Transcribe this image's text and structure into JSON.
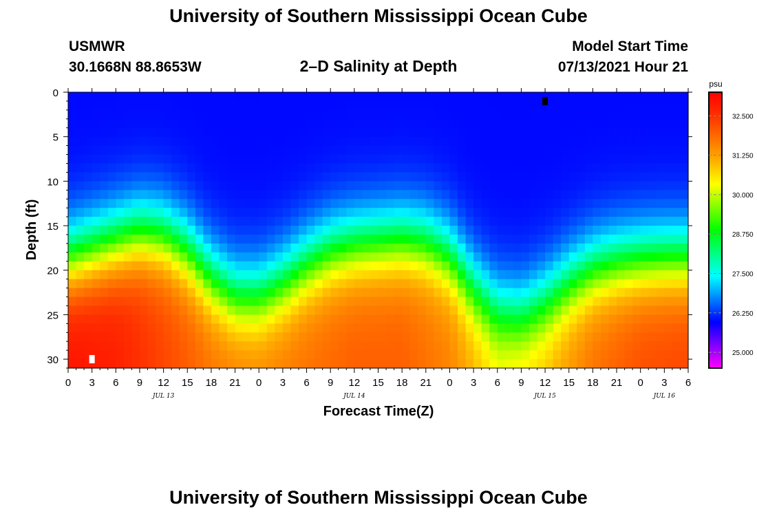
{
  "header": {
    "title": "University of Southern Mississippi Ocean Cube",
    "station": "USMWR",
    "coords": "30.1668N  88.8653W",
    "plot_title": "2–D Salinity at Depth",
    "model_label": "Model Start Time",
    "model_time": "07/13/2021 Hour 21"
  },
  "footer": {
    "title": "University of Southern Mississippi Ocean Cube"
  },
  "chart_data": {
    "type": "heatmap",
    "title": "2–D Salinity at Depth",
    "xlabel": "Forecast Time(Z)",
    "ylabel": "Depth (ft)",
    "x_start_hour": 0,
    "x_end_hour": 78,
    "x_tick_step_hours": 3,
    "x_tick_labels": [
      "0",
      "3",
      "6",
      "9",
      "12",
      "15",
      "18",
      "21",
      "0",
      "3",
      "6",
      "9",
      "12",
      "15",
      "18",
      "21",
      "0",
      "3",
      "6",
      "9",
      "12",
      "15",
      "18",
      "21",
      "0",
      "3",
      "6"
    ],
    "date_labels": [
      {
        "text": "JUL 13",
        "hour": 12
      },
      {
        "text": "JUL 14",
        "hour": 36
      },
      {
        "text": "JUL 15",
        "hour": 60
      },
      {
        "text": "JUL 16",
        "hour": 75
      }
    ],
    "ylim": [
      0,
      31
    ],
    "y_ticks": [
      0,
      5,
      10,
      15,
      20,
      25,
      30
    ],
    "y_reversed": true,
    "colorbar": {
      "unit": "psu",
      "min": 24.5,
      "max": 33.25,
      "tick_values": [
        25.0,
        26.25,
        27.5,
        28.75,
        30.0,
        31.25,
        32.5
      ],
      "tick_labels": [
        "25.000",
        "26.250",
        "27.500",
        "28.750",
        "30.000",
        "31.250",
        "32.500"
      ],
      "colors": [
        "#ff00ff",
        "#8000ff",
        "#0000ff",
        "#0080ff",
        "#00ffff",
        "#00ff80",
        "#00ff00",
        "#80ff00",
        "#ffff00",
        "#ffb000",
        "#ff7000",
        "#ff3000",
        "#ff0000"
      ]
    },
    "halocline_depth_ft": {
      "hours": [
        0,
        3,
        6,
        9,
        12,
        15,
        18,
        21,
        24,
        27,
        30,
        33,
        36,
        39,
        42,
        45,
        48,
        51,
        54,
        57,
        60,
        63,
        66,
        69,
        72,
        75,
        78
      ],
      "depth": [
        15.5,
        14.5,
        13.5,
        12.5,
        12.8,
        14.5,
        17.5,
        19.5,
        19.5,
        18.0,
        16.0,
        14.5,
        13.8,
        13.5,
        13.2,
        13.5,
        15.0,
        18.5,
        21.0,
        21.5,
        20.0,
        18.0,
        16.5,
        15.8,
        15.5,
        15.3,
        15.3
      ]
    },
    "surface_salinity_psu": 26.0,
    "deep_salinity_psu": {
      "hours": [
        0,
        6,
        12,
        18,
        24,
        30,
        36,
        42,
        48,
        54,
        60,
        66,
        72,
        78
      ],
      "values": [
        33.0,
        32.8,
        32.3,
        31.8,
        31.6,
        31.8,
        32.0,
        32.0,
        31.6,
        30.6,
        31.0,
        31.8,
        32.2,
        32.3
      ]
    },
    "markers": [
      {
        "hour": 3,
        "depth": 30,
        "color": "#ffffff"
      },
      {
        "hour": 60,
        "depth": 1,
        "color": "#000000"
      }
    ]
  }
}
